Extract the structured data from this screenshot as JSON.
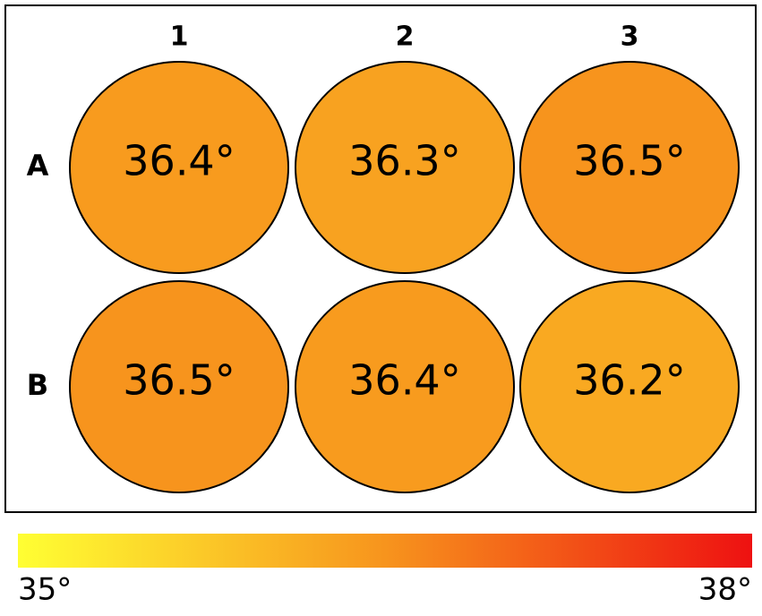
{
  "chart_data": {
    "type": "heatmap",
    "categories": [
      "1",
      "2",
      "3"
    ],
    "rows": [
      "A",
      "B"
    ],
    "values": [
      [
        36.4,
        36.3,
        36.5
      ],
      [
        36.5,
        36.4,
        36.2
      ]
    ],
    "value_labels": [
      [
        "36.4°",
        "36.3°",
        "36.5°"
      ],
      [
        "36.5°",
        "36.4°",
        "36.2°"
      ]
    ],
    "colorbar": {
      "range": [
        35,
        38
      ],
      "ticks": [
        {
          "value": 35,
          "label": "35°"
        },
        {
          "value": 38,
          "label": "38°"
        }
      ],
      "colors": [
        "#ffff33",
        "#f7941d",
        "#ee1111"
      ]
    }
  }
}
